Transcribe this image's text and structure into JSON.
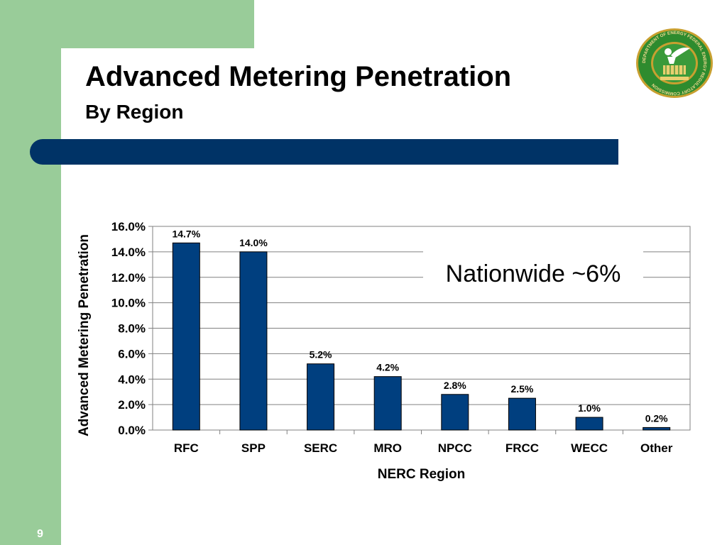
{
  "slide": {
    "title": "Advanced Metering Penetration",
    "subtitle": "By Region",
    "page_number": "9",
    "colors": {
      "green_band": "#99cc99",
      "navy": "#003366",
      "logo_green": "#2e8b2e",
      "logo_gold": "#c8a030"
    }
  },
  "logo": {
    "icon": "ferc-seal-icon",
    "text": "DEPARTMENT OF ENERGY FEDERAL ENERGY REGULATORY COMMISSION"
  },
  "chart_data": {
    "type": "bar",
    "categories": [
      "RFC",
      "SPP",
      "SERC",
      "MRO",
      "NPCC",
      "FRCC",
      "WECC",
      "Other"
    ],
    "values": [
      14.7,
      14.0,
      5.2,
      4.2,
      2.8,
      2.5,
      1.0,
      0.2
    ],
    "value_labels": [
      "14.7%",
      "14.0%",
      "5.2%",
      "4.2%",
      "2.8%",
      "2.5%",
      "1.0%",
      "0.2%"
    ],
    "xlabel": "NERC Region",
    "ylabel": "Advanced Metering Penetration",
    "ylim": [
      0,
      16
    ],
    "yticks": [
      0,
      2,
      4,
      6,
      8,
      10,
      12,
      14,
      16
    ],
    "ytick_labels": [
      "0.0%",
      "2.0%",
      "4.0%",
      "6.0%",
      "8.0%",
      "10.0%",
      "12.0%",
      "14.0%",
      "16.0%"
    ],
    "grid": true,
    "bar_color": "#003f7f",
    "annotation": "Nationwide ~6%"
  }
}
